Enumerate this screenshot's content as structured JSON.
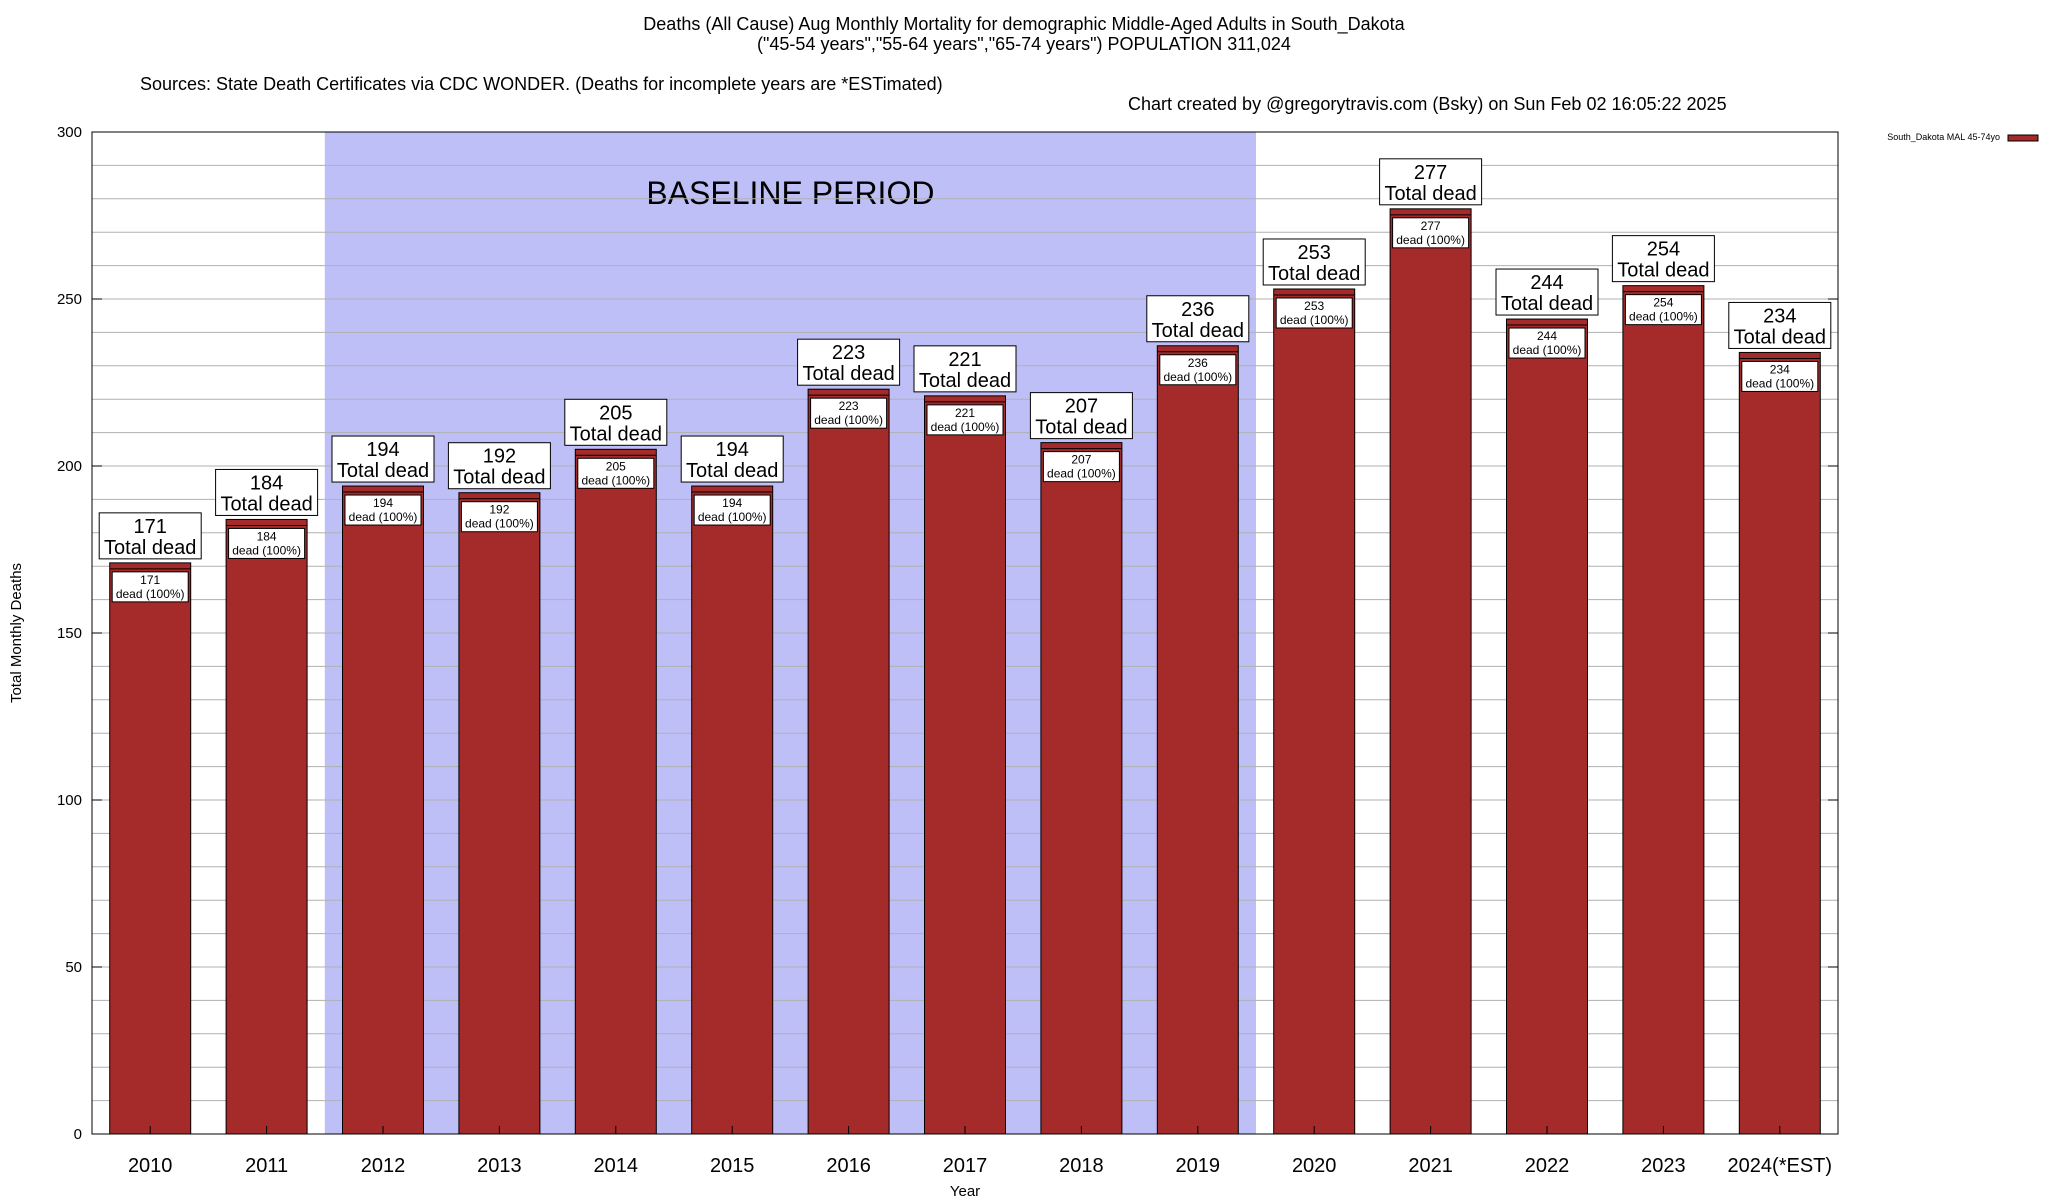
{
  "header": {
    "title_line1": "Deaths (All Cause) Aug Monthly Mortality for demographic Middle-Aged Adults in South_Dakota",
    "title_line2": "(\"45-54 years\",\"55-64 years\",\"65-74 years\") POPULATION 311,024",
    "title_line3_left": "Sources: State Death Certificates via CDC WONDER. (Deaths for incomplete years are *ESTimated)",
    "title_line3_right": "Chart created by @gregorytravis.com (Bsky) on Sun Feb 02 16:05:22 2025"
  },
  "chart_data": {
    "type": "bar",
    "xlabel": "Year",
    "ylabel": "Total Monthly Deaths",
    "ylim": [
      0,
      300
    ],
    "yticks": [
      0,
      50,
      100,
      150,
      200,
      250,
      300
    ],
    "grid": true,
    "legend_position": "top-right",
    "baseline_label": "BASELINE PERIOD",
    "baseline_range": [
      "2012",
      "2019"
    ],
    "categories": [
      "2010",
      "2011",
      "2012",
      "2013",
      "2014",
      "2015",
      "2016",
      "2017",
      "2018",
      "2019",
      "2020",
      "2021",
      "2022",
      "2023",
      "2024(*EST)"
    ],
    "series": [
      {
        "name": "South_Dakota MAL 45-74yo",
        "values": [
          171,
          184,
          194,
          192,
          205,
          194,
          223,
          221,
          207,
          236,
          253,
          277,
          244,
          254,
          234
        ]
      }
    ],
    "total_label_text": "Total dead",
    "bar_label_suffix": "dead (100%)",
    "colors": {
      "bar": "#a52a2a",
      "baseline_fill": "#bfbff8",
      "grid": "#b0b0b0"
    }
  }
}
